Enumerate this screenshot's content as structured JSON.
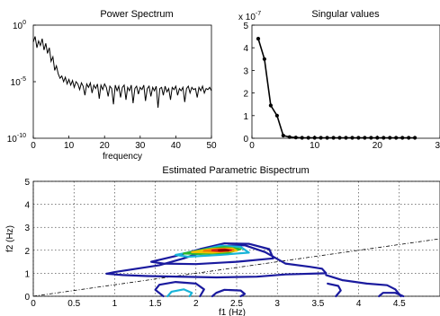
{
  "figure_background": "#ffffff",
  "chart_data": [
    {
      "type": "line",
      "title": "Power Spectrum",
      "xlabel": "frequency",
      "ylabel": "",
      "xlim": [
        0,
        50
      ],
      "ylim_log10": [
        -10,
        0
      ],
      "y_scale": "log",
      "xticks": [
        "0",
        "10",
        "20",
        "30",
        "40",
        "50"
      ],
      "yticks": [
        {
          "base": "10",
          "exp": "0",
          "value_log10": 0
        },
        {
          "base": "10",
          "exp": "-5",
          "value_log10": -5
        },
        {
          "base": "10",
          "exp": "-10",
          "value_log10": -10
        }
      ],
      "grid": false,
      "line_color": "#000000",
      "series": [
        {
          "x": [
            0,
            0.5,
            1,
            1.5,
            2,
            2.5,
            3,
            3.5,
            4,
            4.5,
            5,
            5.5,
            6,
            6.5,
            7,
            7.5,
            8,
            8.5,
            9,
            9.5,
            10,
            10.5,
            11,
            11.5,
            12,
            12.5,
            13,
            13.5,
            14,
            14.5,
            15,
            15.5,
            16,
            16.5,
            17,
            17.5,
            18,
            18.5,
            19,
            19.5,
            20,
            20.5,
            21,
            21.5,
            22,
            22.5,
            23,
            23.5,
            24,
            24.5,
            25,
            25.5,
            26,
            26.5,
            27,
            27.5,
            28,
            28.5,
            29,
            29.5,
            30,
            30.5,
            31,
            31.5,
            32,
            32.5,
            33,
            33.5,
            34,
            34.5,
            35,
            35.5,
            36,
            36.5,
            37,
            37.5,
            38,
            38.5,
            39,
            39.5,
            40,
            40.5,
            41,
            41.5,
            42,
            42.5,
            43,
            43.5,
            44,
            44.5,
            45,
            45.5,
            46,
            46.5,
            47,
            47.5,
            48,
            48.5,
            49,
            49.5,
            50
          ],
          "y_log10": [
            -1.5,
            -1.0,
            -2.0,
            -1.4,
            -1.8,
            -1.2,
            -2.2,
            -1.6,
            -2.5,
            -2.0,
            -3.2,
            -2.8,
            -4.0,
            -3.6,
            -4.3,
            -4.7,
            -4.5,
            -5.0,
            -4.6,
            -5.2,
            -4.8,
            -5.3,
            -4.9,
            -5.5,
            -5.0,
            -5.2,
            -5.7,
            -5.1,
            -5.4,
            -6.2,
            -5.2,
            -5.5,
            -5.1,
            -6.0,
            -5.3,
            -5.6,
            -5.2,
            -6.5,
            -5.3,
            -5.7,
            -5.2,
            -5.5,
            -6.3,
            -5.4,
            -5.6,
            -7.0,
            -5.3,
            -5.8,
            -5.4,
            -6.4,
            -5.5,
            -5.3,
            -6.6,
            -5.5,
            -5.8,
            -5.3,
            -6.9,
            -5.6,
            -5.4,
            -6.1,
            -5.5,
            -5.7,
            -5.3,
            -6.7,
            -5.6,
            -5.4,
            -6.3,
            -5.5,
            -5.8,
            -5.4,
            -7.3,
            -5.6,
            -5.5,
            -6.2,
            -5.4,
            -5.9,
            -5.6,
            -6.6,
            -5.5,
            -5.7,
            -5.4,
            -6.2,
            -5.6,
            -5.8,
            -5.5,
            -6.8,
            -5.6,
            -5.4,
            -6.0,
            -5.5,
            -5.7,
            -5.6,
            -6.4,
            -5.5,
            -5.8,
            -5.4,
            -6.0,
            -5.6,
            -5.7,
            -5.5,
            -5.8
          ]
        }
      ]
    },
    {
      "type": "line",
      "title": "Singular values",
      "xlabel": "",
      "ylabel": "",
      "y_exponent_label": {
        "base": "x 10",
        "exp": "-7"
      },
      "xlim": [
        0,
        30
      ],
      "ylim": [
        0,
        5
      ],
      "xticks": [
        "0",
        "10",
        "20",
        "3"
      ],
      "yticks": [
        "0",
        "1",
        "2",
        "3",
        "4",
        "5"
      ],
      "grid": false,
      "marker": "dot",
      "line_color": "#000000",
      "series": [
        {
          "x": [
            1,
            2,
            3,
            4,
            5,
            6,
            7,
            8,
            9,
            10,
            11,
            12,
            13,
            14,
            15,
            16,
            17,
            18,
            19,
            20,
            21,
            22,
            23,
            24,
            25,
            26
          ],
          "y": [
            4.4,
            3.5,
            1.45,
            1.0,
            0.12,
            0.05,
            0.03,
            0.02,
            0.02,
            0.02,
            0.02,
            0.02,
            0.02,
            0.02,
            0.02,
            0.02,
            0.02,
            0.02,
            0.02,
            0.02,
            0.02,
            0.02,
            0.02,
            0.02,
            0.02,
            0.02
          ]
        }
      ]
    },
    {
      "type": "contour",
      "title": "Estimated Parametric Bispectrum",
      "xlabel": "f1 (Hz)",
      "ylabel": "f2 (Hz)",
      "xlim": [
        0,
        5
      ],
      "ylim": [
        0,
        5
      ],
      "xticks": [
        "0",
        "0.5",
        "1",
        "1.5",
        "2",
        "2.5",
        "3",
        "3.5",
        "4",
        "4.5"
      ],
      "yticks": [
        "0",
        "1",
        "2",
        "3",
        "4",
        "5"
      ],
      "grid": true,
      "reference_line": {
        "x": [
          0,
          5
        ],
        "y": [
          0,
          2.5
        ],
        "style": "dash-dot"
      },
      "contours": [
        {
          "color": "#1a1a9e",
          "points": [
            [
              0.9,
              0.98
            ],
            [
              1.0,
              1.05
            ],
            [
              1.55,
              1.35
            ],
            [
              1.85,
              1.65
            ],
            [
              2.1,
              1.95
            ],
            [
              2.4,
              2.2
            ],
            [
              2.6,
              2.22
            ],
            [
              2.85,
              1.92
            ],
            [
              3.1,
              1.42
            ],
            [
              3.4,
              1.28
            ],
            [
              3.55,
              1.2
            ],
            [
              3.6,
              1.0
            ],
            [
              3.1,
              0.95
            ],
            [
              2.75,
              0.85
            ],
            [
              2.25,
              0.82
            ],
            [
              1.4,
              0.88
            ],
            [
              1.1,
              0.92
            ],
            [
              0.9,
              0.98
            ]
          ]
        },
        {
          "color": "#1a1a9e",
          "points": [
            [
              1.45,
              1.5
            ],
            [
              1.75,
              1.75
            ],
            [
              2.05,
              2.05
            ],
            [
              2.35,
              2.3
            ],
            [
              2.65,
              2.28
            ],
            [
              2.9,
              2.05
            ],
            [
              2.95,
              1.65
            ],
            [
              2.5,
              1.5
            ],
            [
              2.0,
              1.4
            ],
            [
              1.6,
              1.42
            ],
            [
              1.45,
              1.5
            ]
          ]
        },
        {
          "color": "#1a1a9e",
          "points": [
            [
              1.6,
              0.0
            ],
            [
              1.5,
              0.28
            ],
            [
              1.55,
              0.5
            ],
            [
              1.75,
              0.62
            ],
            [
              2.0,
              0.55
            ],
            [
              2.1,
              0.3
            ],
            [
              2.05,
              0.0
            ]
          ]
        },
        {
          "color": "#1a1a9e",
          "points": [
            [
              2.2,
              0.0
            ],
            [
              2.25,
              0.15
            ],
            [
              2.35,
              0.28
            ],
            [
              2.55,
              0.25
            ],
            [
              2.6,
              0.1
            ],
            [
              2.55,
              0.0
            ]
          ]
        },
        {
          "color": "#1a1a9e",
          "points": [
            [
              3.6,
              0.92
            ],
            [
              3.8,
              0.7
            ],
            [
              4.1,
              0.55
            ],
            [
              4.35,
              0.48
            ],
            [
              4.45,
              0.3
            ],
            [
              4.52,
              0.0
            ]
          ]
        },
        {
          "color": "#1a1a9e",
          "points": [
            [
              3.62,
              0.55
            ],
            [
              3.75,
              0.45
            ],
            [
              3.78,
              0.25
            ],
            [
              3.72,
              0.0
            ]
          ]
        },
        {
          "color": "#1a1a9e",
          "points": [
            [
              4.25,
              0.0
            ],
            [
              4.3,
              0.15
            ],
            [
              4.45,
              0.15
            ],
            [
              4.55,
              0.0
            ]
          ]
        },
        {
          "color": "#18b4d8",
          "points": [
            [
              1.65,
              0.0
            ],
            [
              1.7,
              0.2
            ],
            [
              1.85,
              0.3
            ],
            [
              1.95,
              0.15
            ],
            [
              1.92,
              0.0
            ]
          ]
        },
        {
          "color": "#18b4d8",
          "points": [
            [
              1.75,
              1.8
            ],
            [
              2.05,
              2.0
            ],
            [
              2.3,
              2.2
            ],
            [
              2.55,
              2.15
            ],
            [
              2.65,
              1.9
            ],
            [
              2.3,
              1.8
            ],
            [
              1.9,
              1.72
            ],
            [
              1.75,
              1.8
            ]
          ]
        },
        {
          "color": "#2eb82e",
          "points": [
            [
              1.85,
              1.86
            ],
            [
              2.1,
              2.04
            ],
            [
              2.35,
              2.14
            ],
            [
              2.55,
              2.05
            ],
            [
              2.4,
              1.9
            ],
            [
              2.05,
              1.84
            ],
            [
              1.85,
              1.86
            ]
          ]
        },
        {
          "color": "#f2c200",
          "points": [
            [
              1.95,
              1.92
            ],
            [
              2.2,
              2.06
            ],
            [
              2.45,
              2.08
            ],
            [
              2.5,
              1.98
            ],
            [
              2.2,
              1.9
            ],
            [
              1.95,
              1.92
            ]
          ]
        },
        {
          "color": "#f07a00",
          "points": [
            [
              2.1,
              1.98
            ],
            [
              2.3,
              2.06
            ],
            [
              2.46,
              2.02
            ],
            [
              2.3,
              1.95
            ],
            [
              2.1,
              1.98
            ]
          ]
        },
        {
          "color": "#d41a1a",
          "points": [
            [
              2.2,
              2.0
            ],
            [
              2.35,
              2.04
            ],
            [
              2.43,
              2.0
            ],
            [
              2.3,
              1.97
            ],
            [
              2.2,
              2.0
            ]
          ]
        },
        {
          "color": "#8b0000",
          "points": [
            [
              2.28,
              2.0
            ],
            [
              2.36,
              2.02
            ],
            [
              2.4,
              1.99
            ],
            [
              2.28,
              2.0
            ]
          ]
        }
      ]
    }
  ]
}
